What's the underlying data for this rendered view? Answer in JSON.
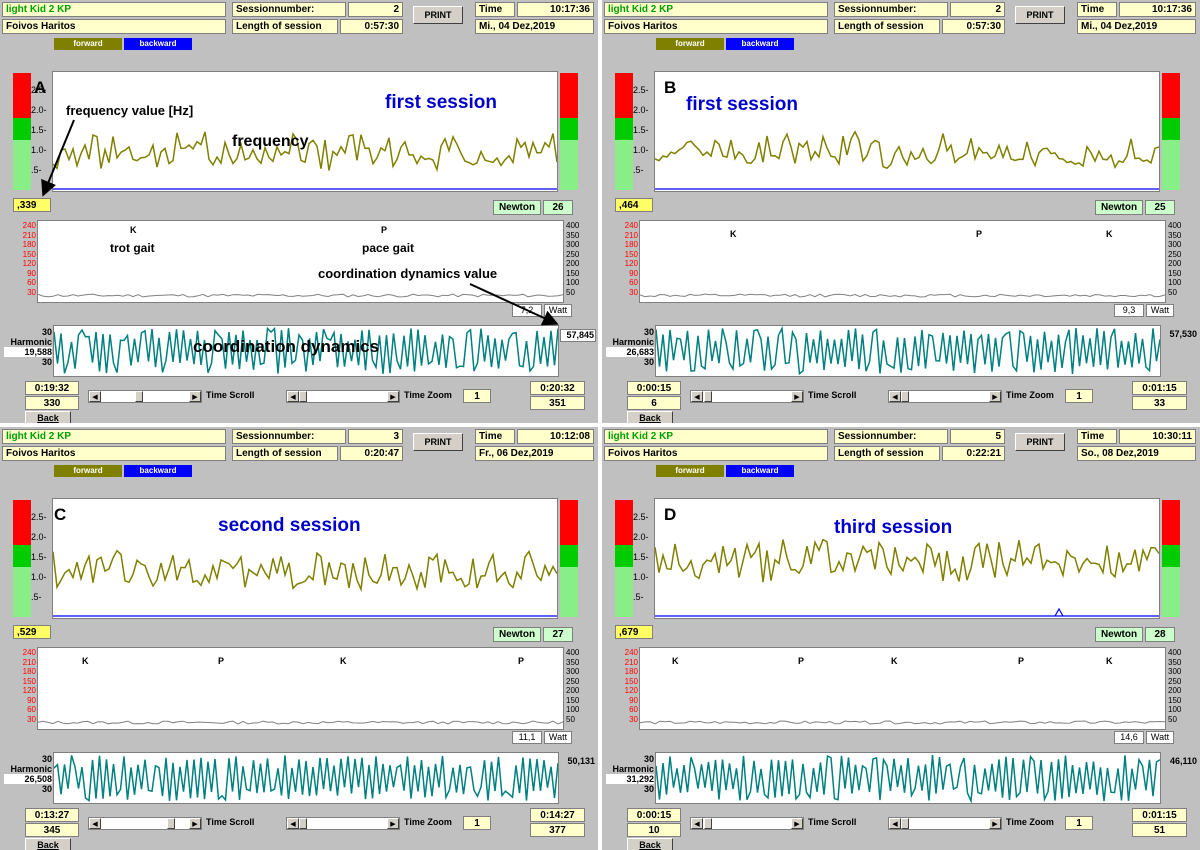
{
  "colors": {
    "frequency_line": "#808000",
    "coordination_line": "#008080",
    "baseline": "#0000ff",
    "title": "#0000cc"
  },
  "common": {
    "user": "Foivos Haritos",
    "sessionnumber_label": "Sessionnumber:",
    "length_label": "Length of session",
    "time_label": "Time",
    "print_label": "PRINT",
    "forward_label": "forward",
    "backward_label": "backward",
    "newton_label": "Newton",
    "watt_label": "Watt",
    "harmonic_label": "Harmonic",
    "coord_tick": "30",
    "time_scroll_label": "Time Scroll",
    "time_zoom_label": "Time Zoom",
    "zoom_value": "1",
    "back_label": "Back",
    "freq_ticks": [
      "2.5-",
      "2.0-",
      "1.5-",
      "1.0-",
      ".5-"
    ],
    "left_ticks": [
      "240",
      "210",
      "180",
      "150",
      "120",
      "90",
      "60",
      "30"
    ],
    "right_ticks": [
      "400",
      "350",
      "300",
      "250",
      "200",
      "150",
      "100",
      "50"
    ]
  },
  "panels": [
    {
      "letter": "A",
      "app": "light Kid 2 KP",
      "session": "2",
      "length": "0:57:30",
      "time": "10:17:36",
      "date": "Mi., 04 Dez,2019",
      "title": "first session",
      "freq_value": ",339",
      "newton": "26",
      "watt": "7,2",
      "harmonic": "19,588",
      "coord_value": "57,845",
      "start_time": "0:19:32",
      "start_index": "330",
      "end_time": "0:20:32",
      "end_index": "351",
      "gait_markers": [
        "K",
        "P"
      ],
      "annotations": {
        "frequency_value": "frequency value [Hz]",
        "frequency": "frequency",
        "trot": "trot gait",
        "pace": "pace gait",
        "coord_value": "coordination dynamics value",
        "coord": "coordination dynamics"
      }
    },
    {
      "letter": "B",
      "app": "light Kid 2 KP",
      "session": "2",
      "length": "0:57:30",
      "time": "10:17:36",
      "date": "Mi., 04 Dez,2019",
      "title": "first session",
      "freq_value": ",464",
      "newton": "25",
      "watt": "9,3",
      "harmonic": "26,683",
      "coord_value": "57,530",
      "start_time": "0:00:15",
      "start_index": "6",
      "end_time": "0:01:15",
      "end_index": "33",
      "gait_markers": [
        "K",
        "P",
        "K"
      ]
    },
    {
      "letter": "C",
      "app": "light Kid 2 KP",
      "session": "3",
      "length": "0:20:47",
      "time": "10:12:08",
      "date": "Fr., 06 Dez,2019",
      "title": "second session",
      "freq_value": ",529",
      "newton": "27",
      "watt": "11,1",
      "harmonic": "26,508",
      "coord_value": "50,131",
      "start_time": "0:13:27",
      "start_index": "345",
      "end_time": "0:14:27",
      "end_index": "377",
      "gait_markers": [
        "K",
        "P",
        "K",
        "P"
      ]
    },
    {
      "letter": "D",
      "app": "light Kid 2 KP",
      "session": "5",
      "length": "0:22:21",
      "time": "10:30:11",
      "date": "So., 08 Dez,2019",
      "title": "third session",
      "freq_value": ",679",
      "newton": "28",
      "watt": "14,6",
      "harmonic": "31,292",
      "coord_value": "46,110",
      "start_time": "0:00:15",
      "start_index": "10",
      "end_time": "0:01:15",
      "end_index": "51",
      "gait_markers": [
        "K",
        "P",
        "K",
        "P",
        "K"
      ]
    }
  ]
}
